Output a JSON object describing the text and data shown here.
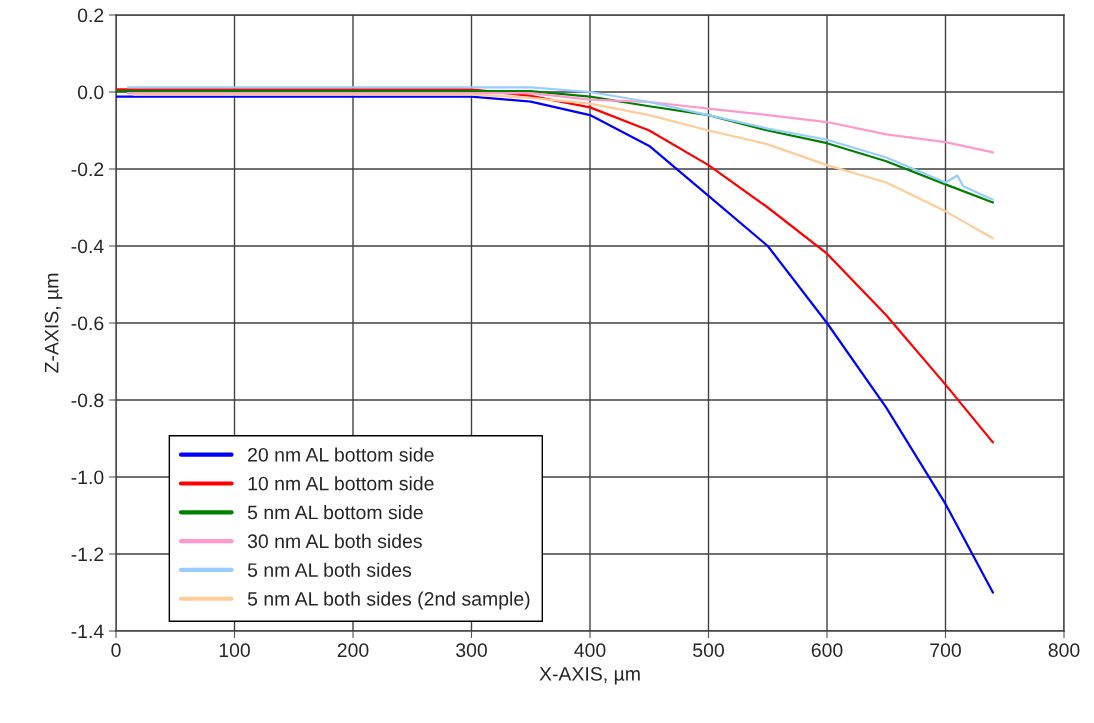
{
  "chart_data": {
    "type": "line",
    "xlabel": "X-AXIS, µm",
    "ylabel": "Z-AXIS, µm",
    "xlim": [
      0,
      800
    ],
    "xticks": [
      0,
      100,
      200,
      300,
      400,
      500,
      600,
      700,
      800
    ],
    "ylim": [
      -1.4,
      0.2
    ],
    "yticks": [
      0.2,
      {
        "value": 0,
        "label": "0.0"
      },
      -0.2,
      -0.4,
      -0.6,
      -0.8,
      {
        "value": -1.0,
        "label": "-1.0"
      },
      -1.2,
      -1.4
    ],
    "grid": true,
    "legend": "bottom left",
    "marker": "none",
    "line_style": "solid",
    "series": [
      {
        "name": "20 nm AL bottom side",
        "color": "#0000ff",
        "x": [
          0,
          50,
          100,
          150,
          200,
          250,
          300,
          350,
          400,
          450,
          500,
          550,
          600,
          650,
          700,
          740
        ],
        "values": [
          -0.012,
          -0.012,
          -0.012,
          -0.012,
          -0.012,
          -0.012,
          -0.012,
          -0.025,
          -0.06,
          -0.14,
          -0.27,
          -0.4,
          -0.6,
          -0.82,
          -1.07,
          -1.3
        ]
      },
      {
        "name": "10 nm AL bottom side",
        "color": "#ff0000",
        "x": [
          0,
          50,
          100,
          150,
          200,
          250,
          300,
          350,
          400,
          450,
          500,
          550,
          600,
          650,
          700,
          740
        ],
        "values": [
          0.007,
          0.007,
          0.007,
          0.007,
          0.007,
          0.007,
          0.007,
          -0.01,
          -0.04,
          -0.1,
          -0.19,
          -0.3,
          -0.42,
          -0.58,
          -0.76,
          -0.91
        ]
      },
      {
        "name": "5 nm AL bottom side",
        "color": "#008000",
        "x": [
          0,
          50,
          100,
          150,
          200,
          250,
          300,
          350,
          400,
          450,
          500,
          550,
          600,
          650,
          700,
          740
        ],
        "values": [
          0.002,
          0.002,
          0.002,
          0.002,
          0.002,
          0.002,
          0.002,
          0.002,
          -0.012,
          -0.037,
          -0.06,
          -0.1,
          -0.133,
          -0.18,
          -0.24,
          -0.287
        ]
      },
      {
        "name": "30 nm AL both sides",
        "color": "#ff99cc",
        "x": [
          10,
          50,
          100,
          150,
          200,
          250,
          300,
          350,
          400,
          450,
          500,
          550,
          600,
          650,
          700,
          740
        ],
        "values": [
          -0.003,
          -0.003,
          -0.003,
          -0.003,
          -0.003,
          -0.003,
          -0.003,
          -0.003,
          -0.02,
          -0.026,
          -0.043,
          -0.06,
          -0.078,
          -0.11,
          -0.13,
          -0.157
        ]
      },
      {
        "name": "5 nm AL both sides",
        "color": "#99ccff",
        "x": [
          10,
          50,
          100,
          150,
          200,
          250,
          300,
          350,
          400,
          450,
          500,
          550,
          600,
          650,
          700,
          710,
          715,
          740
        ],
        "values": [
          0.012,
          0.012,
          0.012,
          0.012,
          0.012,
          0.012,
          0.012,
          0.012,
          0,
          -0.026,
          -0.06,
          -0.095,
          -0.124,
          -0.17,
          -0.235,
          -0.217,
          -0.245,
          -0.28
        ]
      },
      {
        "name": "5 nm AL both sides (2nd sample)",
        "color": "#ffcc99",
        "x": [
          15,
          50,
          100,
          150,
          200,
          250,
          300,
          350,
          400,
          450,
          500,
          550,
          600,
          650,
          700,
          740
        ],
        "values": [
          -0.007,
          -0.007,
          -0.007,
          -0.007,
          -0.007,
          -0.007,
          -0.007,
          -0.015,
          -0.03,
          -0.06,
          -0.1,
          -0.136,
          -0.19,
          -0.235,
          -0.31,
          -0.38
        ]
      }
    ]
  }
}
